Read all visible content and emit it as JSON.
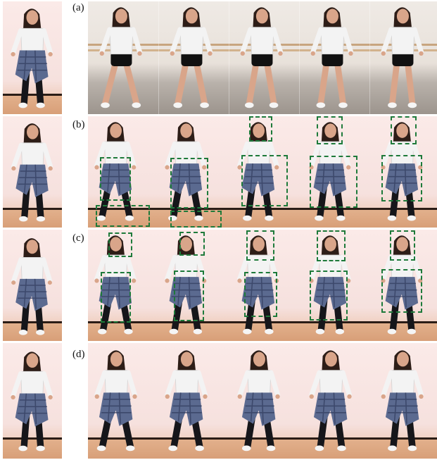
{
  "labels": {
    "a": "(a)",
    "b": "(b)",
    "c": "(c)",
    "d": "(d)"
  },
  "colors": {
    "box": "#1e7a3a",
    "row_a_background": "#ece6e0",
    "background": "#f9e6e4",
    "floor": "#e2b08c",
    "shirt": "#f3f3f3",
    "pants": "#16161a",
    "plaid": "#5b6a90",
    "hair": "#2d1d17",
    "skin": "#d9a58a"
  },
  "icons": {
    "figure": "dancer-figure",
    "box": "dashed-bounding-box"
  }
}
